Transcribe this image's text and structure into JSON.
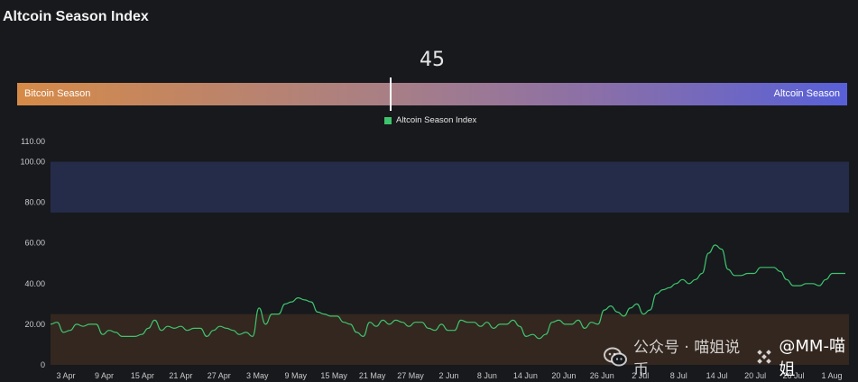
{
  "header": {
    "title": "Altcoin Season Index"
  },
  "gauge": {
    "value": 45,
    "value_label": "45",
    "left_label": "Bitcoin Season",
    "right_label": "Altcoin Season"
  },
  "legend": {
    "label": "Altcoin Season Index",
    "color": "#3ec46d"
  },
  "watermark": {
    "text": "公众号 · 喵姐说币",
    "icon": "wechat-icon",
    "handle_icon": "binance-icon",
    "handle": "@MM-喵姐"
  },
  "chart_data": {
    "type": "line",
    "title": "",
    "xlabel": "",
    "ylabel": "",
    "ylim": [
      0,
      110
    ],
    "yticks": [
      "0",
      "20.00",
      "40.00",
      "60.00",
      "80.00",
      "100.00",
      "110.00"
    ],
    "ytick_values": [
      0,
      20,
      40,
      60,
      80,
      100,
      110
    ],
    "xticks": [
      "3 Apr",
      "9 Apr",
      "15 Apr",
      "21 Apr",
      "27 Apr",
      "3 May",
      "9 May",
      "15 May",
      "21 May",
      "27 May",
      "2 Jun",
      "8 Jun",
      "14 Jun",
      "20 Jun",
      "26 Jun",
      "2 Jul",
      "8 Jul",
      "14 Jul",
      "20 Jul",
      "26 Jul",
      "1 Aug"
    ],
    "bands": [
      {
        "name": "Altcoin Season zone",
        "from": 75,
        "to": 100,
        "color": "#252c4a"
      },
      {
        "name": "Bitcoin Season zone",
        "from": 0,
        "to": 25,
        "color": "#33271f"
      }
    ],
    "grid": false,
    "series": [
      {
        "name": "Altcoin Season Index",
        "color": "#3ec46d",
        "x": [
          0,
          1,
          2,
          3,
          4,
          5,
          6,
          7,
          8,
          9,
          10,
          11,
          12,
          13,
          14,
          15,
          16,
          17,
          18,
          19,
          20,
          21,
          22,
          23,
          24,
          25,
          26,
          27,
          28,
          29,
          30,
          31,
          32,
          33,
          34,
          35,
          36,
          37,
          38,
          39,
          40,
          41,
          42,
          43,
          44,
          45,
          46,
          47,
          48,
          49,
          50,
          51,
          52,
          53,
          54,
          55,
          56,
          57,
          58,
          59,
          60,
          61,
          62,
          63,
          64,
          65,
          66,
          67,
          68,
          69,
          70,
          71,
          72,
          73,
          74,
          75,
          76,
          77,
          78,
          79,
          80,
          81,
          82,
          83,
          84,
          85,
          86,
          87,
          88,
          89,
          90,
          91,
          92,
          93,
          94,
          95,
          96,
          97,
          98,
          99,
          100,
          101,
          102,
          103,
          104,
          105,
          106,
          107,
          108,
          109,
          110,
          111,
          112,
          113,
          114,
          115,
          116,
          117,
          118,
          119,
          120,
          121,
          122
        ],
        "values": [
          20,
          21,
          16,
          17,
          20,
          19,
          20,
          20,
          15,
          17,
          16,
          14,
          14,
          14,
          15,
          18,
          22,
          17,
          19,
          18,
          19,
          17,
          18,
          18,
          14,
          17,
          19,
          18,
          17,
          15,
          16,
          14,
          28,
          20,
          25,
          25,
          30,
          31,
          33,
          32,
          31,
          26,
          25,
          24,
          24,
          21,
          20,
          16,
          14,
          21,
          19,
          22,
          20,
          22,
          21,
          19,
          21,
          21,
          18,
          17,
          20,
          17,
          17,
          22,
          21,
          21,
          19,
          21,
          18,
          20,
          20,
          22,
          19,
          14,
          15,
          13,
          15,
          21,
          22,
          20,
          20,
          22,
          18,
          21,
          20,
          27,
          29,
          26,
          24,
          28,
          30,
          25,
          27,
          35,
          37,
          38,
          40,
          42,
          40,
          42,
          45,
          55,
          59,
          57,
          47,
          44,
          44,
          45,
          45,
          48,
          48,
          48,
          46,
          42,
          39,
          39,
          40,
          40,
          39,
          42,
          45,
          45,
          45
        ]
      }
    ]
  }
}
